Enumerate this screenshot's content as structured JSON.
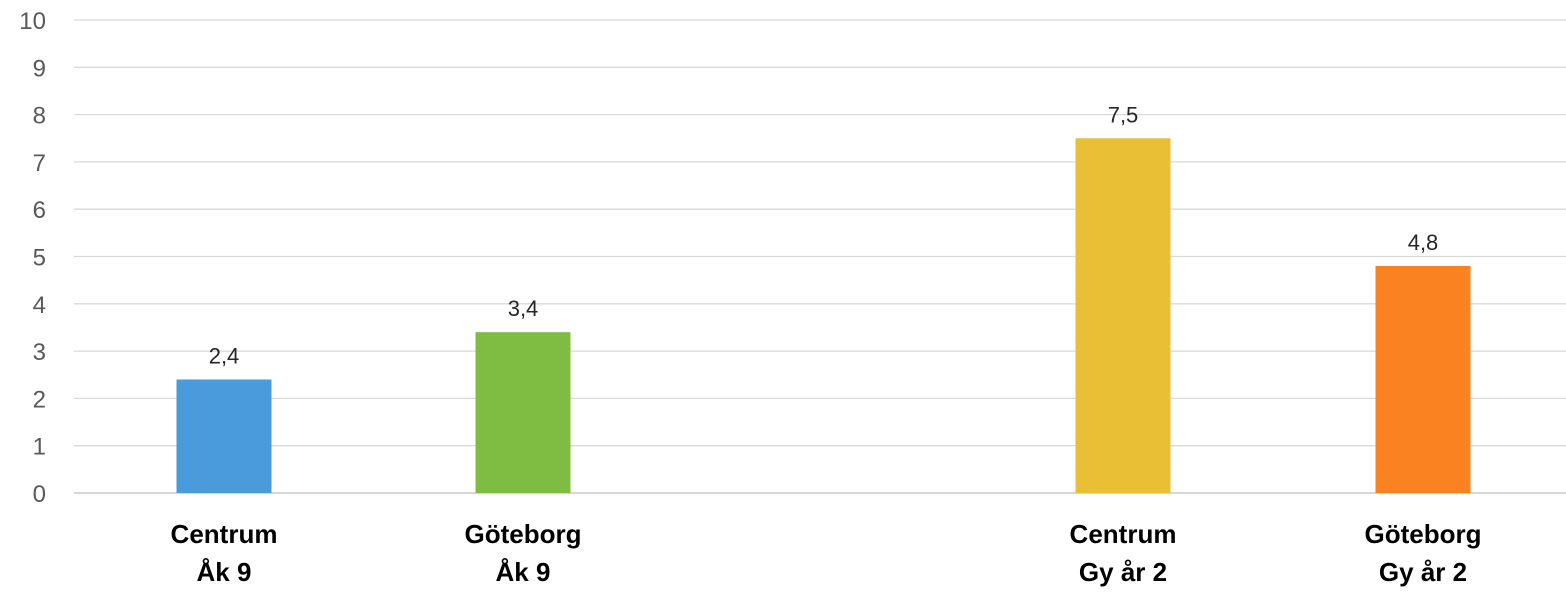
{
  "chart_data": {
    "type": "bar",
    "categories": [
      [
        "Centrum",
        "Åk 9"
      ],
      [
        "Göteborg",
        "Åk 9"
      ],
      [
        "Centrum",
        "Gy år 2"
      ],
      [
        "Göteborg",
        "Gy år 2"
      ]
    ],
    "values": [
      2.4,
      3.4,
      7.5,
      4.8
    ],
    "data_labels": [
      "2,4",
      "3,4",
      "7,5",
      "4,8"
    ],
    "bar_colors": [
      "#4a9bdc",
      "#7fbc42",
      "#e8bf35",
      "#fb8221"
    ],
    "y_ticks": [
      "0",
      "1",
      "2",
      "3",
      "4",
      "5",
      "6",
      "7",
      "8",
      "9",
      "10"
    ],
    "ylim": [
      0,
      10
    ],
    "grid": true,
    "title": "",
    "xlabel": "",
    "ylabel": ""
  }
}
